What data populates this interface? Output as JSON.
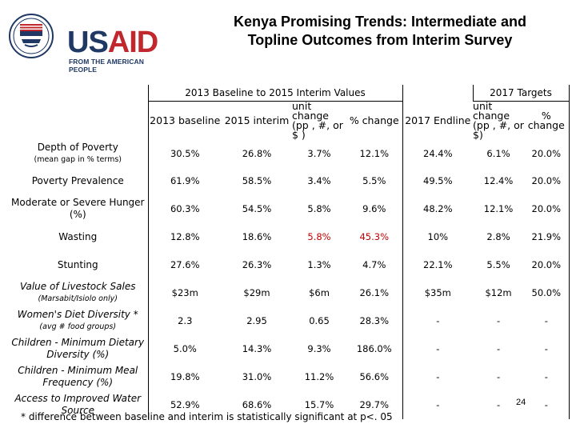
{
  "logo": {
    "text": "USAID",
    "subtitle": "FROM THE AMERICAN PEOPLE",
    "colors": {
      "us": "#1f3864",
      "aid": "#c0282d"
    }
  },
  "title": {
    "line1": "Kenya Promising Trends: Intermediate and",
    "line2": "Topline Outcomes from Interim Survey"
  },
  "table": {
    "group_headers": {
      "baseline": "2013 Baseline to 2015 Interim Values",
      "targets": "2017 Targets"
    },
    "columns": {
      "baseline": "2013 baseline",
      "interim": "2015 interim",
      "unit_change": "unit change (pp , #, or $ )",
      "pct_change": "% change",
      "endline": "2017 Endline",
      "target_unit_change": "unit change (pp , #, or $)",
      "target_pct_change": "% change"
    },
    "rows": [
      {
        "label": "Depth of Poverty",
        "sublabel": "(mean gap in % terms)",
        "italic": false,
        "red": false,
        "values": [
          "30.5%",
          "26.8%",
          "3.7%",
          "12.1%",
          "24.4%",
          "6.1%",
          "20.0%"
        ]
      },
      {
        "label": "Poverty Prevalence",
        "sublabel": "",
        "italic": false,
        "red": false,
        "values": [
          "61.9%",
          "58.5%",
          "3.4%",
          "5.5%",
          "49.5%",
          "12.4%",
          "20.0%"
        ]
      },
      {
        "label": "Moderate or Severe Hunger (%)",
        "sublabel": "",
        "italic": false,
        "red": false,
        "values": [
          "60.3%",
          "54.5%",
          "5.8%",
          "9.6%",
          "48.2%",
          "12.1%",
          "20.0%"
        ]
      },
      {
        "label": "Wasting",
        "sublabel": "",
        "italic": false,
        "red": true,
        "values": [
          "12.8%",
          "18.6%",
          "5.8%",
          "45.3%",
          "10%",
          "2.8%",
          "21.9%"
        ]
      },
      {
        "label": "Stunting",
        "sublabel": "",
        "italic": false,
        "red": false,
        "values": [
          "27.6%",
          "26.3%",
          "1.3%",
          "4.7%",
          "22.1%",
          "5.5%",
          "20.0%"
        ]
      },
      {
        "label": "Value of Livestock Sales",
        "sublabel": "(Marsabit/Isiolo only)",
        "italic": true,
        "red": false,
        "values": [
          "$23m",
          "$29m",
          "$6m",
          "26.1%",
          "$35m",
          "$12m",
          "50.0%"
        ]
      },
      {
        "label": "Women's Diet Diversity *",
        "sublabel": "(avg # food groups)",
        "italic": true,
        "red": false,
        "values": [
          "2.3",
          "2.95",
          "0.65",
          "28.3%",
          "-",
          "-",
          "-"
        ]
      },
      {
        "label": "Children - Minimum Dietary Diversity (%)",
        "sublabel": "",
        "italic": true,
        "red": false,
        "values": [
          "5.0%",
          "14.3%",
          "9.3%",
          "186.0%",
          "-",
          "-",
          "-"
        ]
      },
      {
        "label": "Children - Minimum Meal Frequency (%)",
        "sublabel": "",
        "italic": true,
        "red": false,
        "values": [
          "19.8%",
          "31.0%",
          "11.2%",
          "56.6%",
          "-",
          "-",
          "-"
        ]
      },
      {
        "label": "Access to Improved Water Source",
        "sublabel": "",
        "italic": true,
        "red": false,
        "values": [
          "52.9%",
          "68.6%",
          "15.7%",
          "29.7%",
          "-",
          "-",
          "-"
        ]
      }
    ]
  },
  "footnote": "* difference between baseline and interim is statistically significant at p<. 05",
  "page_number": "24"
}
